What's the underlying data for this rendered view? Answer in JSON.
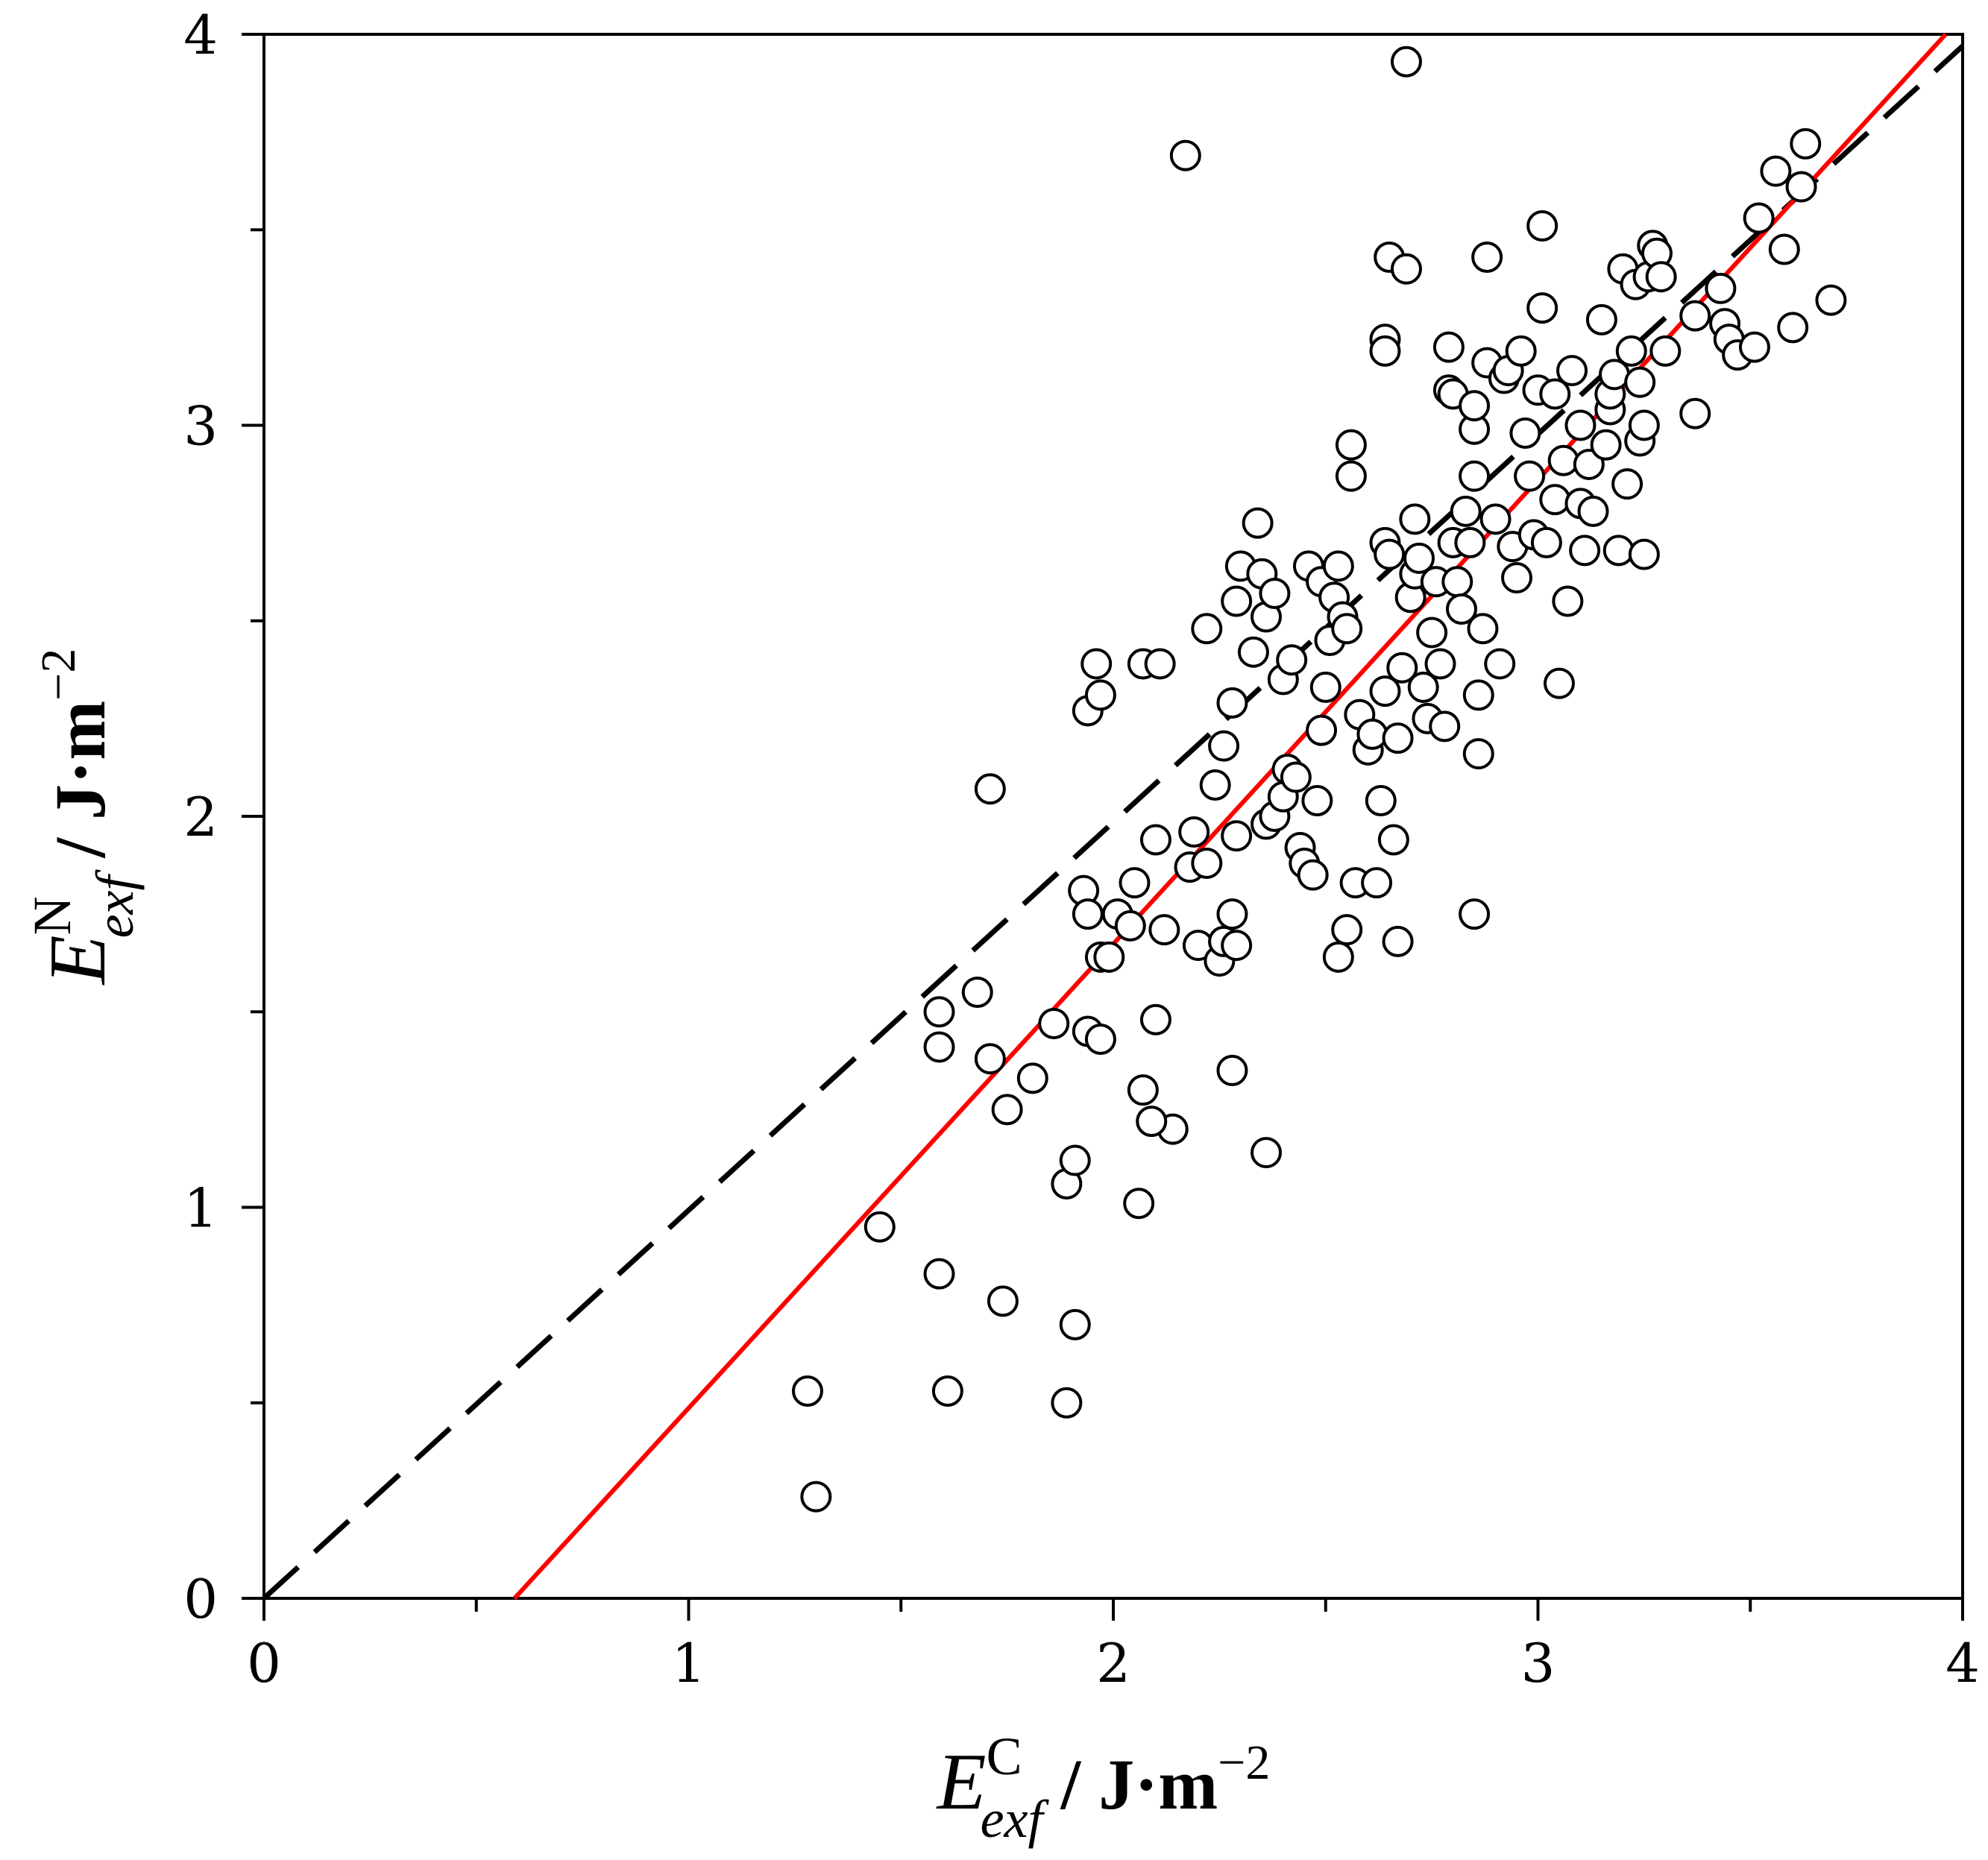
{
  "chart_data": {
    "type": "scatter",
    "title": "",
    "xlabel": {
      "symbol": "E",
      "superscript": "C",
      "subscript": "exf",
      "units_base": " / J·m",
      "units_exp": "−2"
    },
    "ylabel": {
      "symbol": "E",
      "superscript": "N",
      "subscript": "exf",
      "units_base": " / J·m",
      "units_exp": "−2"
    },
    "xlim": [
      0,
      4
    ],
    "ylim": [
      0,
      4
    ],
    "x_major_ticks": [
      0,
      1,
      2,
      3,
      4
    ],
    "y_major_ticks": [
      0,
      1,
      2,
      3,
      4
    ],
    "x_tick_labels": [
      "0",
      "1",
      "2",
      "3",
      "4"
    ],
    "y_tick_labels": [
      "0",
      "1",
      "2",
      "3",
      "4"
    ],
    "minor_tick_step": 0.5,
    "grid": false,
    "colors": {
      "markers": "#000000",
      "parity_line": "#000000",
      "fit_line": "#ff0000"
    },
    "lines": [
      {
        "name": "parity",
        "style": "dashed",
        "color": "#000000",
        "x": [
          0,
          4
        ],
        "y": [
          0,
          3.97
        ]
      },
      {
        "name": "fit",
        "style": "solid",
        "color": "#ff0000",
        "x": [
          0.59,
          3.96
        ],
        "y": [
          0,
          4.0
        ]
      }
    ],
    "series": [
      {
        "name": "data",
        "marker": "open-circle",
        "points": [
          [
            1.28,
            0.53
          ],
          [
            1.3,
            0.26
          ],
          [
            1.45,
            0.95
          ],
          [
            1.59,
            0.83
          ],
          [
            1.61,
            0.53
          ],
          [
            1.74,
            0.76
          ],
          [
            1.89,
            0.5
          ],
          [
            1.91,
            0.7
          ],
          [
            1.89,
            1.06
          ],
          [
            1.91,
            1.12
          ],
          [
            2.06,
            1.01
          ],
          [
            2.14,
            1.2
          ],
          [
            2.36,
            1.14
          ],
          [
            1.59,
            1.5
          ],
          [
            1.59,
            1.41
          ],
          [
            1.68,
            1.55
          ],
          [
            1.71,
            1.38
          ],
          [
            1.75,
            1.25
          ],
          [
            1.81,
            1.33
          ],
          [
            1.86,
            1.47
          ],
          [
            1.94,
            1.45
          ],
          [
            1.97,
            1.43
          ],
          [
            2.07,
            1.3
          ],
          [
            2.09,
            1.22
          ],
          [
            2.1,
            1.48
          ],
          [
            2.28,
            1.35
          ],
          [
            1.71,
            2.07
          ],
          [
            1.94,
            2.27
          ],
          [
            1.96,
            2.39
          ],
          [
            1.97,
            2.31
          ],
          [
            2.07,
            2.39
          ],
          [
            2.11,
            2.39
          ],
          [
            2.17,
            3.69
          ],
          [
            1.93,
            1.81
          ],
          [
            1.94,
            1.75
          ],
          [
            1.97,
            1.64
          ],
          [
            1.99,
            1.64
          ],
          [
            2.01,
            1.75
          ],
          [
            2.04,
            1.72
          ],
          [
            2.05,
            1.83
          ],
          [
            2.1,
            1.94
          ],
          [
            2.12,
            1.71
          ],
          [
            2.18,
            1.87
          ],
          [
            2.19,
            1.96
          ],
          [
            2.2,
            1.67
          ],
          [
            2.22,
            1.88
          ],
          [
            2.24,
            2.08
          ],
          [
            2.25,
            1.63
          ],
          [
            2.26,
            1.68
          ],
          [
            2.28,
            1.75
          ],
          [
            2.29,
            1.67
          ],
          [
            2.29,
            1.95
          ],
          [
            2.22,
            2.48
          ],
          [
            2.26,
            2.18
          ],
          [
            2.28,
            2.29
          ],
          [
            2.29,
            2.55
          ],
          [
            2.3,
            2.64
          ],
          [
            2.33,
            2.42
          ],
          [
            2.34,
            2.75
          ],
          [
            2.35,
            2.62
          ],
          [
            2.36,
            2.51
          ],
          [
            2.38,
            2.57
          ],
          [
            2.4,
            2.35
          ],
          [
            2.42,
            2.4
          ],
          [
            2.36,
            1.98
          ],
          [
            2.38,
            2.0
          ],
          [
            2.4,
            2.05
          ],
          [
            2.41,
            2.12
          ],
          [
            2.43,
            2.1
          ],
          [
            2.44,
            1.92
          ],
          [
            2.45,
            1.88
          ],
          [
            2.47,
            1.85
          ],
          [
            2.48,
            2.04
          ],
          [
            2.49,
            2.22
          ],
          [
            2.5,
            2.33
          ],
          [
            2.46,
            2.64
          ],
          [
            2.49,
            2.6
          ],
          [
            2.51,
            2.45
          ],
          [
            2.52,
            2.56
          ],
          [
            2.53,
            2.64
          ],
          [
            2.54,
            2.51
          ],
          [
            2.55,
            2.48
          ],
          [
            2.56,
            2.95
          ],
          [
            2.56,
            2.87
          ],
          [
            2.57,
            1.83
          ],
          [
            2.53,
            1.64
          ],
          [
            2.55,
            1.71
          ],
          [
            2.58,
            2.26
          ],
          [
            2.6,
            2.17
          ],
          [
            2.61,
            2.21
          ],
          [
            2.62,
            1.83
          ],
          [
            2.63,
            2.04
          ],
          [
            2.64,
            2.32
          ],
          [
            2.64,
            2.7
          ],
          [
            2.65,
            2.67
          ],
          [
            2.64,
            3.22
          ],
          [
            2.64,
            3.19
          ],
          [
            2.65,
            3.43
          ],
          [
            2.66,
            1.94
          ],
          [
            2.67,
            1.68
          ],
          [
            2.67,
            2.2
          ],
          [
            2.68,
            2.38
          ],
          [
            2.69,
            3.4
          ],
          [
            2.69,
            3.93
          ],
          [
            2.7,
            2.56
          ],
          [
            2.71,
            2.62
          ],
          [
            2.71,
            2.76
          ],
          [
            2.72,
            2.66
          ],
          [
            2.73,
            2.33
          ],
          [
            2.74,
            2.25
          ],
          [
            2.75,
            2.47
          ],
          [
            2.76,
            2.6
          ],
          [
            2.77,
            2.39
          ],
          [
            2.78,
            2.23
          ],
          [
            2.79,
            3.09
          ],
          [
            2.79,
            3.2
          ],
          [
            2.8,
            3.08
          ],
          [
            2.8,
            2.7
          ],
          [
            2.81,
            2.6
          ],
          [
            2.82,
            2.53
          ],
          [
            2.83,
            2.78
          ],
          [
            2.84,
            2.7
          ],
          [
            2.85,
            2.87
          ],
          [
            2.85,
            2.99
          ],
          [
            2.85,
            3.05
          ],
          [
            2.86,
            2.31
          ],
          [
            2.86,
            2.16
          ],
          [
            2.85,
            1.75
          ],
          [
            2.87,
            2.48
          ],
          [
            2.88,
            3.43
          ],
          [
            2.88,
            3.16
          ],
          [
            2.9,
            2.76
          ],
          [
            2.91,
            2.39
          ],
          [
            2.92,
            3.12
          ],
          [
            2.93,
            3.14
          ],
          [
            2.94,
            2.69
          ],
          [
            2.95,
            2.61
          ],
          [
            2.96,
            3.19
          ],
          [
            2.97,
            2.98
          ],
          [
            2.98,
            2.87
          ],
          [
            2.99,
            2.72
          ],
          [
            3.0,
            3.09
          ],
          [
            3.01,
            3.51
          ],
          [
            3.01,
            3.3
          ],
          [
            3.02,
            2.7
          ],
          [
            3.04,
            2.81
          ],
          [
            3.04,
            3.08
          ],
          [
            3.05,
            2.34
          ],
          [
            3.06,
            2.91
          ],
          [
            3.07,
            2.55
          ],
          [
            3.08,
            3.14
          ],
          [
            3.1,
            2.8
          ],
          [
            3.1,
            3.0
          ],
          [
            3.11,
            2.68
          ],
          [
            3.12,
            2.9
          ],
          [
            3.13,
            2.78
          ],
          [
            3.15,
            3.27
          ],
          [
            3.16,
            2.95
          ],
          [
            3.17,
            3.04
          ],
          [
            3.17,
            3.08
          ],
          [
            3.18,
            3.13
          ],
          [
            3.19,
            2.68
          ],
          [
            3.2,
            3.4
          ],
          [
            3.21,
            2.85
          ],
          [
            3.22,
            3.19
          ],
          [
            3.23,
            3.36
          ],
          [
            3.24,
            3.11
          ],
          [
            3.24,
            2.96
          ],
          [
            3.25,
            3.0
          ],
          [
            3.25,
            2.67
          ],
          [
            3.26,
            3.38
          ],
          [
            3.27,
            3.46
          ],
          [
            3.28,
            3.44
          ],
          [
            3.29,
            3.38
          ],
          [
            3.3,
            3.19
          ],
          [
            3.37,
            3.03
          ],
          [
            3.37,
            3.28
          ],
          [
            3.43,
            3.35
          ],
          [
            3.44,
            3.26
          ],
          [
            3.45,
            3.22
          ],
          [
            3.47,
            3.18
          ],
          [
            3.51,
            3.2
          ],
          [
            3.52,
            3.53
          ],
          [
            3.56,
            3.65
          ],
          [
            3.58,
            3.45
          ],
          [
            3.6,
            3.25
          ],
          [
            3.62,
            3.61
          ],
          [
            3.63,
            3.72
          ],
          [
            3.69,
            3.32
          ]
        ]
      }
    ]
  }
}
